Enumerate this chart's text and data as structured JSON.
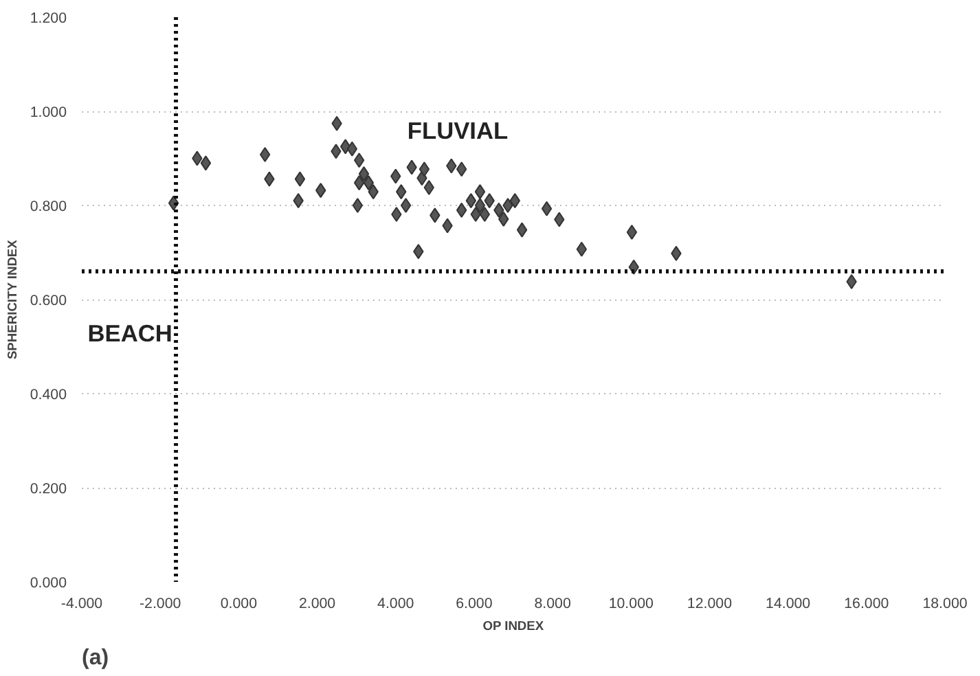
{
  "chart_data": {
    "type": "scatter",
    "xlabel": "OP INDEX",
    "ylabel": "SPHERICITY INDEX",
    "annotations": [
      "FLUVIAL",
      "BEACH",
      "(a)"
    ],
    "series": [
      {
        "color": "#555555",
        "marker": "diamond",
        "x": [
          -1.66,
          -1.06,
          -0.84,
          0.67,
          0.78,
          1.56,
          1.52,
          2.09,
          2.5,
          2.48,
          2.72,
          2.89,
          3.07,
          3.19,
          3.31,
          3.43,
          3.07,
          3.03,
          4.0,
          4.41,
          4.67,
          4.85,
          4.73,
          4.14,
          4.26,
          4.02,
          5.0,
          5.32,
          4.58,
          5.42,
          5.68,
          5.92,
          6.15,
          6.04,
          5.68,
          6.15,
          6.39,
          6.27,
          6.63,
          6.86,
          7.04,
          6.75,
          7.22,
          7.85,
          8.17,
          8.74,
          10.02,
          10.07,
          11.15,
          15.62
        ],
        "values": [
          0.805,
          0.9,
          0.89,
          0.908,
          0.856,
          0.856,
          0.81,
          0.832,
          0.974,
          0.915,
          0.925,
          0.92,
          0.896,
          0.867,
          0.848,
          0.829,
          0.848,
          0.8,
          0.862,
          0.881,
          0.858,
          0.838,
          0.877,
          0.829,
          0.8,
          0.781,
          0.779,
          0.757,
          0.702,
          0.884,
          0.877,
          0.81,
          0.8,
          0.781,
          0.79,
          0.829,
          0.81,
          0.781,
          0.79,
          0.8,
          0.81,
          0.771,
          0.748,
          0.793,
          0.77,
          0.707,
          0.743,
          0.669,
          0.698,
          0.638
        ]
      }
    ],
    "xlim": [
      -4,
      18
    ],
    "xticks": [
      {
        "value": -4,
        "label": "-4.000"
      },
      {
        "value": -2,
        "label": "-2.000"
      },
      {
        "value": 0,
        "label": "0.000"
      },
      {
        "value": 2,
        "label": "2.000"
      },
      {
        "value": 4,
        "label": "4.000"
      },
      {
        "value": 6,
        "label": "6.000"
      },
      {
        "value": 8,
        "label": "8.000"
      },
      {
        "value": 10,
        "label": "10.000"
      },
      {
        "value": 12,
        "label": "12.000"
      },
      {
        "value": 14,
        "label": "14.000"
      },
      {
        "value": 16,
        "label": "16.000"
      },
      {
        "value": 18,
        "label": "18.000"
      }
    ],
    "ylim": [
      0,
      1.2
    ],
    "yticks": [
      {
        "value": 0,
        "label": "0.000"
      },
      {
        "value": 0.2,
        "label": "0.200"
      },
      {
        "value": 0.4,
        "label": "0.400"
      },
      {
        "value": 0.6,
        "label": "0.600"
      },
      {
        "value": 0.8,
        "label": "0.800"
      },
      {
        "value": 1.0,
        "label": "1.000"
      },
      {
        "value": 1.2,
        "label": "1.200"
      }
    ],
    "ref_lines": [
      {
        "axis": "x",
        "value": -1.6,
        "color": "#111111",
        "line_style": "dotted"
      },
      {
        "axis": "y",
        "value": 0.66,
        "color": "#111111",
        "line_style": "dotted"
      }
    ],
    "grid": "y"
  }
}
